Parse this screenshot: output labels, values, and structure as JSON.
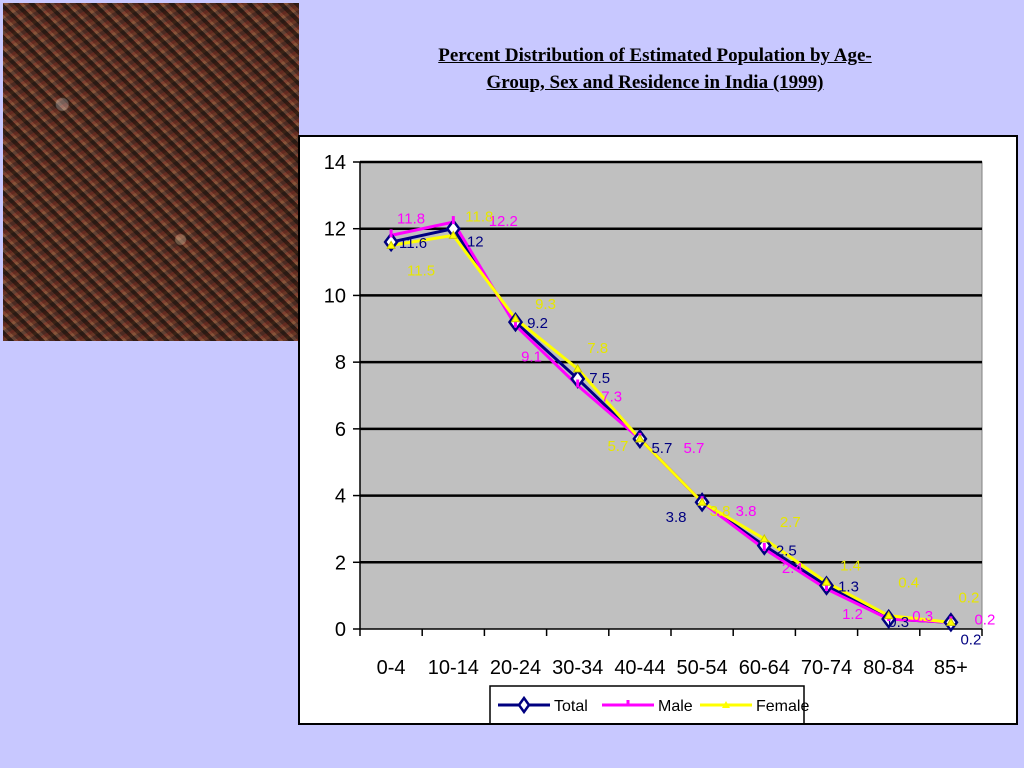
{
  "slide": {
    "title_line1": "Percent Distribution of Estimated Population by Age-",
    "title_line2": "Group, Sex and Residence in India (1999)",
    "photo_icon": "crowd-photo"
  },
  "chart_data": {
    "type": "line",
    "title": "Percent Distribution of Estimated Population by Age-Group, Sex and Residence in India (1999)",
    "categories": [
      "0-4",
      "10-14",
      "20-24",
      "30-34",
      "40-44",
      "50-54",
      "60-64",
      "70-74",
      "80-84",
      "85+"
    ],
    "ylim": [
      0,
      14
    ],
    "yticks": [
      0,
      2,
      4,
      6,
      8,
      10,
      12,
      14
    ],
    "grid": true,
    "legend": "bottom",
    "plot_background": "#c0c0c0",
    "series": [
      {
        "name": "Total",
        "color": "#000080",
        "marker": "diamond",
        "values": [
          11.6,
          12,
          9.2,
          7.5,
          5.7,
          3.8,
          2.5,
          1.3,
          0.3,
          0.2
        ],
        "labels": [
          "11.6",
          "12",
          "9.2",
          "7.5",
          "5.7",
          "3.8",
          "2.5",
          "1.3",
          "0.3",
          "0.2"
        ]
      },
      {
        "name": "Male",
        "color": "#ff00ff",
        "marker": "tick",
        "values": [
          11.8,
          12.2,
          9.1,
          7.3,
          5.7,
          3.8,
          2.4,
          1.2,
          0.3,
          0.2
        ],
        "labels": [
          "11.8",
          "12.2",
          "9.1",
          "7.3",
          "5.7",
          "3.8",
          "2.4",
          "1.2",
          "0.3",
          "0.2"
        ]
      },
      {
        "name": "Female",
        "color": "#ffff00",
        "marker": "triangle",
        "values": [
          11.5,
          11.8,
          9.3,
          7.8,
          5.7,
          3.8,
          2.7,
          1.4,
          0.4,
          0.2
        ],
        "labels": [
          "11.5",
          "11.8",
          "9.3",
          "7.8",
          "5.7",
          "3.8",
          "2.7",
          "1.4",
          "0.4",
          "0.2"
        ]
      }
    ]
  }
}
